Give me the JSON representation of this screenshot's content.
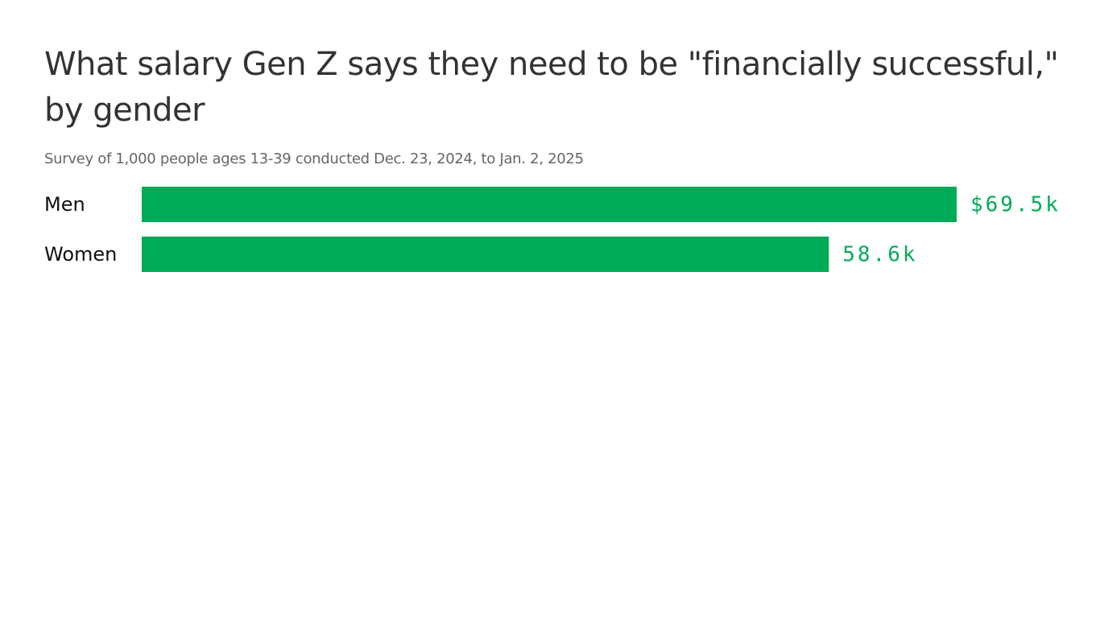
{
  "chart_data": {
    "type": "bar",
    "orientation": "horizontal",
    "title": "What salary Gen Z says they need to be \"financially successful,\" by gender",
    "subtitle": "Survey of 1,000 people ages 13-39 conducted Dec. 23, 2024, to Jan. 2, 2025",
    "categories": [
      "Men",
      "Women"
    ],
    "values": [
      69.5,
      58.6
    ],
    "value_labels": [
      "$69.5k",
      "58.6k"
    ],
    "color": "#00ab58"
  }
}
